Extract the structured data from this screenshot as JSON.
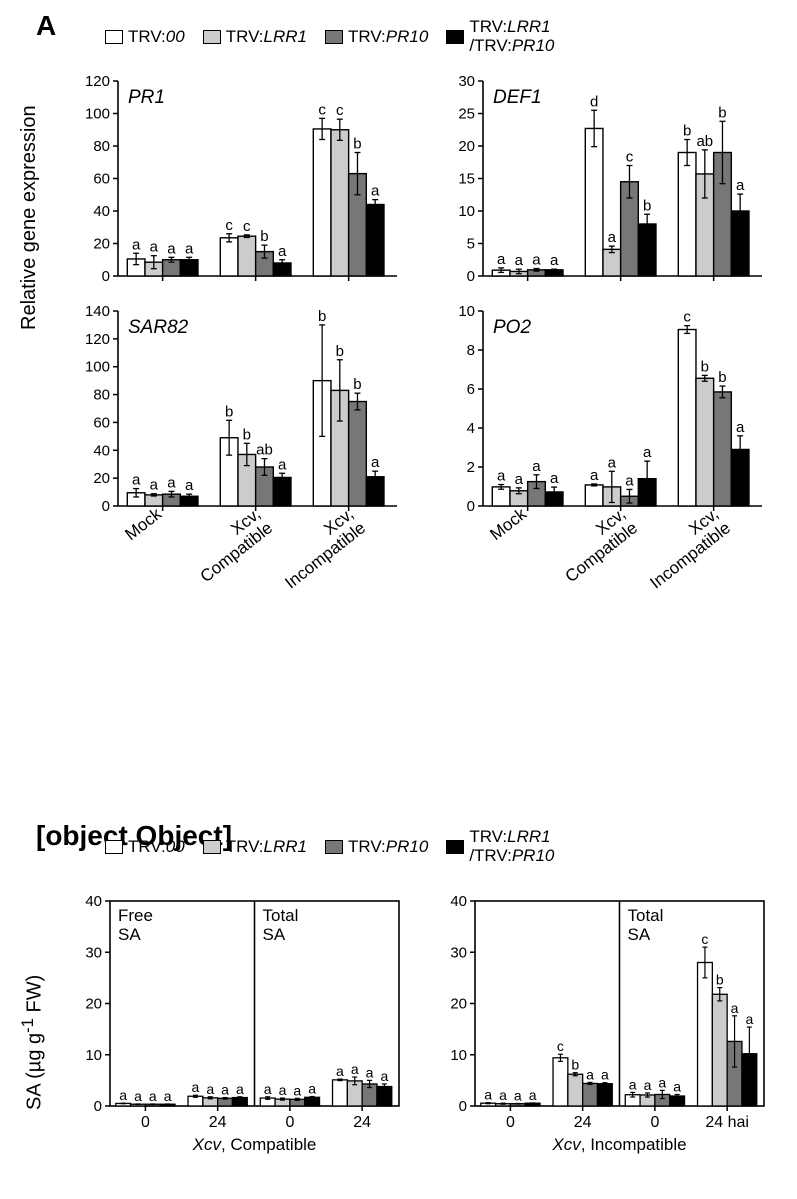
{
  "panelA": "A",
  "panelB": {
    "ymax": 40,
    "ytick": 10,
    "xticks": [
      "0",
      "24",
      "0",
      "24"
    ],
    "hai": "24 hai",
    "left": {
      "title": "Xcv, Compatible",
      "subplots": [
        {
          "label": "Free SA",
          "groups": [
            {
              "values": [
                0.5,
                0.35,
                0.35,
                0.35
              ],
              "err": [
                0.05,
                0.05,
                0.05,
                0.05
              ],
              "letters": [
                "a",
                "a",
                "a",
                "a"
              ]
            },
            {
              "values": [
                1.9,
                1.6,
                1.5,
                1.65
              ],
              "err": [
                0.2,
                0.2,
                0.15,
                0.15
              ],
              "letters": [
                "a",
                "a",
                "a",
                "a"
              ]
            }
          ]
        },
        {
          "label": "Total SA",
          "groups": [
            {
              "values": [
                1.55,
                1.35,
                1.3,
                1.7
              ],
              "err": [
                0.25,
                0.2,
                0.2,
                0.15
              ],
              "letters": [
                "a",
                "a",
                "a",
                "a"
              ]
            },
            {
              "values": [
                5.1,
                4.9,
                4.3,
                3.8
              ],
              "err": [
                0.15,
                0.75,
                0.7,
                0.5
              ],
              "letters": [
                "a",
                "a",
                "a",
                "a"
              ]
            }
          ]
        }
      ]
    },
    "right": {
      "title": "Xcv, Incompatible",
      "subplots": [
        {
          "label": "",
          "groups": [
            {
              "values": [
                0.55,
                0.45,
                0.45,
                0.55
              ],
              "err": [
                0.1,
                0.1,
                0.05,
                0.05
              ],
              "letters": [
                "a",
                "a",
                "a",
                "a"
              ]
            },
            {
              "values": [
                9.4,
                6.2,
                4.4,
                4.35
              ],
              "err": [
                0.7,
                0.3,
                0.2,
                0.2
              ],
              "letters": [
                "c",
                "b",
                "a",
                "a"
              ]
            }
          ]
        },
        {
          "label": "Total SA",
          "groups": [
            {
              "values": [
                2.2,
                2.15,
                2.25,
                1.95
              ],
              "err": [
                0.45,
                0.4,
                0.8,
                0.3
              ],
              "letters": [
                "a",
                "a",
                "a",
                "a"
              ]
            },
            {
              "values": [
                28,
                21.8,
                12.6,
                10.2
              ],
              "err": [
                3,
                1.3,
                5,
                5.2
              ],
              "letters": [
                "c",
                "b",
                "a",
                "a"
              ]
            }
          ]
        }
      ]
    }
  },
  "yLabelA": "Relative gene expression",
  "yLabelB_prefix": "SA (µg g",
  "yLabelB_sup": "-1",
  "yLabelB_suffix": " FW)",
  "legend": {
    "items": [
      {
        "label": "TRV:",
        "gene": "00",
        "color": "#ffffff"
      },
      {
        "label": "TRV:",
        "gene": "LRR1",
        "color": "#cccccc"
      },
      {
        "label": "TRV:",
        "gene": "PR10",
        "color": "#777777"
      },
      {
        "label": "TRV:",
        "gene1": "LRR1",
        "label2": "/TRV:",
        "gene2": "PR10",
        "color": "#000000"
      }
    ]
  },
  "categoriesA": [
    "Mock",
    "Xcv, Compatible",
    "Xcv, Incompatible"
  ],
  "panelA_charts": {
    "PR1": {
      "title": "PR1",
      "ymax": 120,
      "ytick": 20,
      "groups": [
        {
          "values": [
            10.5,
            8.5,
            10,
            10
          ],
          "err": [
            3.5,
            4,
            1.5,
            1.5
          ],
          "letters": [
            "a",
            "a",
            "a",
            "a"
          ]
        },
        {
          "values": [
            23.5,
            24.5,
            15,
            8
          ],
          "err": [
            2.5,
            0.8,
            4,
            2
          ],
          "letters": [
            "c",
            "c",
            "b",
            "a"
          ]
        },
        {
          "values": [
            90.5,
            90,
            63,
            44
          ],
          "err": [
            6.5,
            6.5,
            13,
            3
          ],
          "letters": [
            "c",
            "c",
            "b",
            "a"
          ]
        }
      ]
    },
    "DEF1": {
      "title": "DEF1",
      "ymax": 30,
      "ytick": 5,
      "groups": [
        {
          "values": [
            0.9,
            0.7,
            0.95,
            0.95
          ],
          "err": [
            0.35,
            0.35,
            0.2,
            0.1
          ],
          "letters": [
            "a",
            "a",
            "a",
            "a"
          ]
        },
        {
          "values": [
            22.7,
            4.1,
            14.5,
            8
          ],
          "err": [
            2.8,
            0.5,
            2.5,
            1.5
          ],
          "letters": [
            "d",
            "a",
            "c",
            "b"
          ]
        },
        {
          "values": [
            19,
            15.7,
            19,
            10
          ],
          "err": [
            2,
            3.7,
            4.8,
            2.6
          ],
          "letters": [
            "b",
            "ab",
            "b",
            "a"
          ]
        }
      ]
    },
    "SAR82": {
      "title": "SAR82",
      "ymax": 140,
      "ytick": 20,
      "groups": [
        {
          "values": [
            9.5,
            8,
            8.5,
            7
          ],
          "err": [
            3,
            0.8,
            2,
            1.5
          ],
          "letters": [
            "a",
            "a",
            "a",
            "a"
          ]
        },
        {
          "values": [
            49,
            37,
            28,
            20.5
          ],
          "err": [
            12.5,
            8,
            6,
            3
          ],
          "letters": [
            "b",
            "b",
            "ab",
            "a"
          ]
        },
        {
          "values": [
            90,
            83,
            75,
            21
          ],
          "err": [
            40,
            22,
            6,
            4
          ],
          "letters": [
            "b",
            "b",
            "b",
            "a"
          ]
        }
      ]
    },
    "PO2": {
      "title": "PO2",
      "ymax": 10,
      "ytick": 2,
      "groups": [
        {
          "values": [
            0.98,
            0.78,
            1.25,
            0.72
          ],
          "err": [
            0.12,
            0.15,
            0.35,
            0.25
          ],
          "letters": [
            "a",
            "a",
            "a",
            "a"
          ]
        },
        {
          "values": [
            1.08,
            0.98,
            0.5,
            1.4
          ],
          "err": [
            0.05,
            0.8,
            0.35,
            0.9
          ],
          "letters": [
            "a",
            "a",
            "a",
            "a"
          ]
        },
        {
          "values": [
            9.05,
            6.55,
            5.85,
            2.9
          ],
          "err": [
            0.2,
            0.15,
            0.3,
            0.7
          ],
          "letters": [
            "c",
            "b",
            "b",
            "a"
          ]
        }
      ]
    }
  },
  "colors": [
    "#ffffff",
    "#cccccc",
    "#777777",
    "#000000"
  ],
  "border": "#000000",
  "cap": 3
}
